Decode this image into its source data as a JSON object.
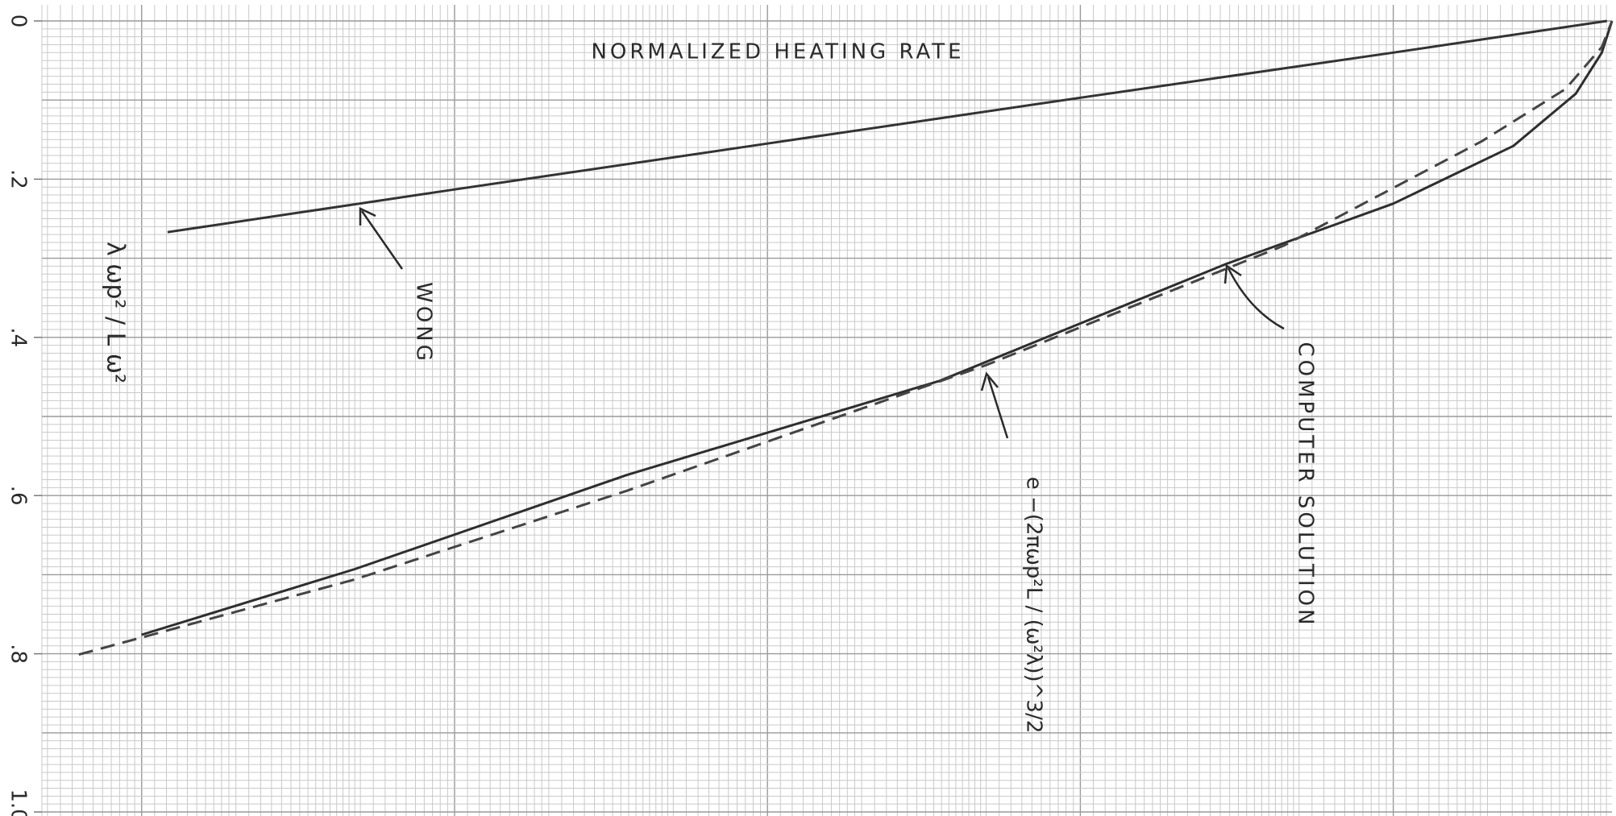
{
  "chart_data": {
    "type": "line",
    "title": "NORMALIZED HEATING RATE",
    "y_label": "λ ωp² / L ω²",
    "annotations": [
      "WONG",
      "COMPUTER SOLUTION",
      "e −(2πωp²L / (ω²λ))^3/2"
    ],
    "x_log": true,
    "xlim": [
      0.48,
      50000
    ],
    "ylim": [
      0,
      1.0
    ],
    "y_inverted": true,
    "yticks": [
      0,
      {
        "value": 0.2,
        "label": ".2"
      },
      {
        "value": 0.4,
        "label": ".4"
      },
      {
        "value": 0.6,
        "label": ".6"
      },
      {
        "value": 0.8,
        "label": ".8"
      },
      {
        "value": 1.0,
        "label": "1.0"
      }
    ],
    "grid": true,
    "series": [
      {
        "name": "WONG",
        "color": "#333333",
        "dashed": false,
        "x": [
          1.21,
          10,
          100,
          1000,
          10000,
          48200
        ],
        "values": [
          0.267,
          0.213,
          0.155,
          0.097,
          0.04,
          0
        ]
      },
      {
        "name": "COMPUTER SOLUTION",
        "color": "#2e2e2e",
        "dashed": false,
        "x": [
          1,
          4.8,
          35.5,
          355,
          2930,
          10000,
          24200,
          38300,
          46400,
          50000
        ],
        "values": [
          0.776,
          0.693,
          0.574,
          0.455,
          0.307,
          0.231,
          0.158,
          0.092,
          0.04,
          0
        ]
      },
      {
        "name": "e −(2πωp²L / (ω²λ))^3/2",
        "color": "#444444",
        "dashed": true,
        "x": [
          0.63,
          4.8,
          35.5,
          500,
          4470,
          19200,
          35500,
          46400,
          50000
        ],
        "values": [
          0.801,
          0.706,
          0.594,
          0.435,
          0.284,
          0.152,
          0.086,
          0.033,
          0
        ]
      }
    ]
  }
}
